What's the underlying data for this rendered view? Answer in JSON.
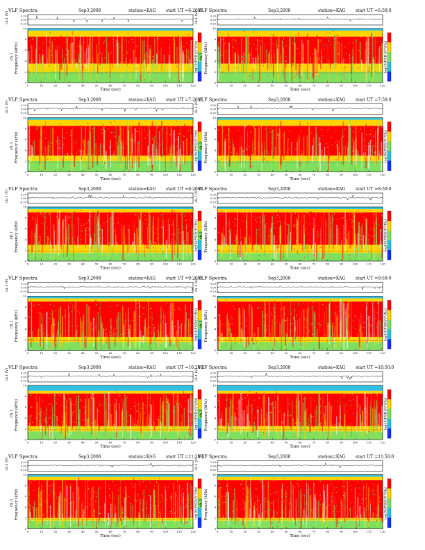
{
  "header": {
    "title": "VLF Spectra",
    "date": "Sep3,2008",
    "station": "station=KAG",
    "start_prefix": "start UT ="
  },
  "colors": {
    "high": "#ff0000",
    "upper": "#ffd400",
    "mid": "#7fe060",
    "low": "#30c0e0",
    "floor": "#1030ff",
    "trace": "#000000"
  },
  "chart_data": [
    {
      "type": "heatmap",
      "start_ut": "6:20:0",
      "title": "VLF Spectra",
      "date": "Sep3,2008",
      "station": "station=KAG",
      "ylabel": "Frequency (kHz)",
      "waveform_label": "ch.1 (V)",
      "colorbar_label": "log10(PSD)(V²/Hz)",
      "xlabel": "Time (sec)",
      "xlim": [
        0,
        120
      ],
      "ylim": [
        0,
        10
      ],
      "x_ticks": [
        0,
        10,
        20,
        30,
        40,
        50,
        60,
        70,
        80,
        90,
        100,
        110,
        120
      ],
      "y_ticks": [
        0,
        2,
        4,
        6,
        8,
        10
      ],
      "waveform_ticks": [
        "0.20",
        "0.00",
        "-0.20"
      ],
      "channel": "ch.1",
      "band_low_khz": 2.0,
      "band_high_khz": 9.6,
      "red_core_khz": [
        3.5,
        8.5
      ],
      "hum_line_khz": 1.8
    },
    {
      "type": "heatmap",
      "start_ut": "6:50:0",
      "title": "VLF Spectra",
      "date": "Sep3,2008",
      "station": "station=KAG",
      "ylabel": "Frequency (kHz)",
      "waveform_label": "ch.1 (V)",
      "colorbar_label": "log10(PSD)(V²/Hz)",
      "xlabel": "Time (sec)",
      "xlim": [
        0,
        120
      ],
      "ylim": [
        0,
        10
      ],
      "x_ticks": [
        0,
        10,
        20,
        30,
        40,
        50,
        60,
        70,
        80,
        90,
        100,
        110,
        120
      ],
      "y_ticks": [
        0,
        2,
        4,
        6,
        8,
        10
      ],
      "waveform_ticks": [
        "0.20",
        "0.00",
        "-0.20"
      ],
      "channel": "ch.1",
      "band_low_khz": 2.0,
      "band_high_khz": 9.6,
      "red_core_khz": [
        3.5,
        8.5
      ],
      "hum_line_khz": 1.8
    },
    {
      "type": "heatmap",
      "start_ut": "7:20:0",
      "title": "VLF Spectra",
      "date": "Sep3,2008",
      "station": "station=KAG",
      "ylabel": "Frequency (kHz)",
      "waveform_label": "ch.1 (V)",
      "colorbar_label": "log10(PSD)(V²/Hz)",
      "xlabel": "Time (sec)",
      "xlim": [
        0,
        120
      ],
      "ylim": [
        0,
        10
      ],
      "x_ticks": [
        0,
        10,
        20,
        30,
        40,
        50,
        60,
        70,
        80,
        90,
        100,
        110,
        120
      ],
      "y_ticks": [
        0,
        2,
        4,
        6,
        8,
        10
      ],
      "waveform_ticks": [
        "0.20",
        "0.00",
        "-0.20"
      ],
      "channel": "ch.1",
      "band_low_khz": 2.0,
      "band_high_khz": 9.6,
      "red_core_khz": [
        3.0,
        8.5
      ],
      "hum_line_khz": 1.8
    },
    {
      "type": "heatmap",
      "start_ut": "7:50:0",
      "title": "VLF Spectra",
      "date": "Sep3,2008",
      "station": "station=KAG",
      "ylabel": "Frequency (kHz)",
      "waveform_label": "ch.1 (V)",
      "colorbar_label": "log10(PSD)(V²/Hz)",
      "xlabel": "Time (sec)",
      "xlim": [
        0,
        120
      ],
      "ylim": [
        0,
        10
      ],
      "x_ticks": [
        0,
        10,
        20,
        30,
        40,
        50,
        60,
        70,
        80,
        90,
        100,
        110,
        120
      ],
      "y_ticks": [
        0,
        2,
        4,
        6,
        8,
        10
      ],
      "waveform_ticks": [
        "0.20",
        "0.00",
        "-0.20"
      ],
      "channel": "ch.1",
      "band_low_khz": 2.0,
      "band_high_khz": 9.6,
      "red_core_khz": [
        3.0,
        8.5
      ],
      "hum_line_khz": 1.8
    },
    {
      "type": "heatmap",
      "start_ut": "8:20:0",
      "title": "VLF Spectra",
      "date": "Sep3,2008",
      "station": "station=KAG",
      "ylabel": "Frequency (kHz)",
      "waveform_label": "ch.1 (V)",
      "colorbar_label": "log10(PSD)(V²/Hz)",
      "xlabel": "Time (sec)",
      "xlim": [
        0,
        120
      ],
      "ylim": [
        0,
        10
      ],
      "x_ticks": [
        0,
        10,
        20,
        30,
        40,
        50,
        60,
        70,
        80,
        90,
        100,
        110,
        120
      ],
      "y_ticks": [
        0,
        2,
        4,
        6,
        8,
        10
      ],
      "waveform_ticks": [
        "0.20",
        "0.00",
        "-0.20"
      ],
      "channel": "ch.1",
      "band_low_khz": 1.5,
      "band_high_khz": 9.6,
      "red_core_khz": [
        3.0,
        9.0
      ],
      "hum_line_khz": 1.8
    },
    {
      "type": "heatmap",
      "start_ut": "8:50:0",
      "title": "VLF Spectra",
      "date": "Sep3,2008",
      "station": "station=KAG",
      "ylabel": "Frequency (kHz)",
      "waveform_label": "ch.1 (V)",
      "colorbar_label": "log10(PSD)(V²/Hz)",
      "xlabel": "Time (sec)",
      "xlim": [
        0,
        120
      ],
      "ylim": [
        0,
        10
      ],
      "x_ticks": [
        0,
        10,
        20,
        30,
        40,
        50,
        60,
        70,
        80,
        90,
        100,
        110,
        120
      ],
      "y_ticks": [
        0,
        2,
        4,
        6,
        8,
        10
      ],
      "waveform_ticks": [
        "0.20",
        "0.00",
        "-0.20"
      ],
      "channel": "ch.1",
      "band_low_khz": 1.5,
      "band_high_khz": 9.6,
      "red_core_khz": [
        3.0,
        9.0
      ],
      "hum_line_khz": 1.8
    },
    {
      "type": "heatmap",
      "start_ut": "9:20:0",
      "title": "VLF Spectra",
      "date": "Sep3,2008",
      "station": "station=KAG",
      "ylabel": "Frequency (kHz)",
      "waveform_label": "ch.1 (V)",
      "colorbar_label": "log10(PSD)(V²/Hz)",
      "xlabel": "Time (sec)",
      "xlim": [
        0,
        120
      ],
      "ylim": [
        0,
        10
      ],
      "x_ticks": [
        0,
        10,
        20,
        30,
        40,
        50,
        60,
        70,
        80,
        90,
        100,
        110,
        120
      ],
      "y_ticks": [
        0,
        2,
        4,
        6,
        8,
        10
      ],
      "waveform_ticks": [
        "0.20",
        "0.00",
        "-0.20"
      ],
      "channel": "ch.1",
      "band_low_khz": 1.5,
      "band_high_khz": 9.6,
      "red_core_khz": [
        2.5,
        9.0
      ],
      "hum_line_khz": 1.8
    },
    {
      "type": "heatmap",
      "start_ut": "9:50:0",
      "title": "VLF Spectra",
      "date": "Sep3,2008",
      "station": "station=KAG",
      "ylabel": "Frequency (kHz)",
      "waveform_label": "ch.1 (V)",
      "colorbar_label": "log10(PSD)(V²/Hz)",
      "xlabel": "Time (sec)",
      "xlim": [
        0,
        120
      ],
      "ylim": [
        0,
        10
      ],
      "x_ticks": [
        0,
        10,
        20,
        30,
        40,
        50,
        60,
        70,
        80,
        90,
        100,
        110,
        120
      ],
      "y_ticks": [
        0,
        2,
        4,
        6,
        8,
        10
      ],
      "waveform_ticks": [
        "0.20",
        "0.00",
        "-0.20"
      ],
      "channel": "ch.1",
      "band_low_khz": 1.5,
      "band_high_khz": 9.6,
      "red_core_khz": [
        2.5,
        9.0
      ],
      "hum_line_khz": 1.8
    },
    {
      "type": "heatmap",
      "start_ut": "10:20:0",
      "title": "VLF Spectra",
      "date": "Sep3,2008",
      "station": "station=KAG",
      "ylabel": "Frequency (kHz)",
      "waveform_label": "ch.1 (V)",
      "colorbar_label": "log10(PSD)(V²/Hz)",
      "xlabel": "Time (sec)",
      "xlim": [
        0,
        120
      ],
      "ylim": [
        0,
        10
      ],
      "x_ticks": [
        0,
        10,
        20,
        30,
        40,
        50,
        60,
        70,
        80,
        90,
        100,
        110,
        120
      ],
      "y_ticks": [
        0,
        2,
        4,
        6,
        8,
        10
      ],
      "waveform_ticks": [
        "0.20",
        "0.00",
        "-0.20"
      ],
      "channel": "ch.1",
      "band_low_khz": 1.5,
      "band_high_khz": 9.0,
      "red_core_khz": [
        2.5,
        8.5
      ],
      "hum_line_khz": 1.8
    },
    {
      "type": "heatmap",
      "start_ut": "10:50:0",
      "title": "VLF Spectra",
      "date": "Sep3,2008",
      "station": "station=KAG",
      "ylabel": "Frequency (kHz)",
      "waveform_label": "ch.1 (V)",
      "colorbar_label": "log10(PSD)(V²/Hz)",
      "xlabel": "Time (sec)",
      "xlim": [
        0,
        120
      ],
      "ylim": [
        0,
        10
      ],
      "x_ticks": [
        0,
        10,
        20,
        30,
        40,
        50,
        60,
        70,
        80,
        90,
        100,
        110,
        120
      ],
      "y_ticks": [
        0,
        2,
        4,
        6,
        8,
        10
      ],
      "waveform_ticks": [
        "0.20",
        "0.00",
        "-0.20"
      ],
      "channel": "ch.1",
      "band_low_khz": 1.5,
      "band_high_khz": 9.0,
      "red_core_khz": [
        2.5,
        8.5
      ],
      "hum_line_khz": 1.8
    },
    {
      "type": "heatmap",
      "start_ut": "11:20:0",
      "title": "VLF Spectra",
      "date": "Sep3,2008",
      "station": "station=KAG",
      "ylabel": "Frequency (kHz)",
      "waveform_label": "ch.1 (V)",
      "colorbar_label": "log10(PSD)(V²/Hz)",
      "xlabel": "Time (sec)",
      "xlim": [
        0,
        120
      ],
      "ylim": [
        0,
        10
      ],
      "x_ticks": [
        0,
        10,
        20,
        30,
        40,
        50,
        60,
        70,
        80,
        90,
        100,
        110,
        120
      ],
      "y_ticks": [
        0,
        2,
        4,
        6,
        8,
        10
      ],
      "waveform_ticks": [
        "0.20",
        "0.00",
        "-0.20"
      ],
      "channel": "ch.1",
      "band_low_khz": 1.5,
      "band_high_khz": 9.6,
      "red_core_khz": [
        2.0,
        9.0
      ],
      "hum_line_khz": 1.8
    },
    {
      "type": "heatmap",
      "start_ut": "11:50:0",
      "title": "VLF Spectra",
      "date": "Sep3,2008",
      "station": "station=KAG",
      "ylabel": "Frequency (kHz)",
      "waveform_label": "ch.1 (V)",
      "colorbar_label": "log10(PSD)(V²/Hz)",
      "xlabel": "Time (sec)",
      "xlim": [
        0,
        120
      ],
      "ylim": [
        0,
        10
      ],
      "x_ticks": [
        0,
        10,
        20,
        30,
        40,
        50,
        60,
        70,
        80,
        90,
        100,
        110,
        120
      ],
      "y_ticks": [
        0,
        2,
        4,
        6,
        8,
        10
      ],
      "waveform_ticks": [
        "0.20",
        "0.00",
        "-0.20"
      ],
      "channel": "ch.1",
      "band_low_khz": 1.5,
      "band_high_khz": 9.6,
      "red_core_khz": [
        2.0,
        9.0
      ],
      "hum_line_khz": 1.8
    }
  ]
}
